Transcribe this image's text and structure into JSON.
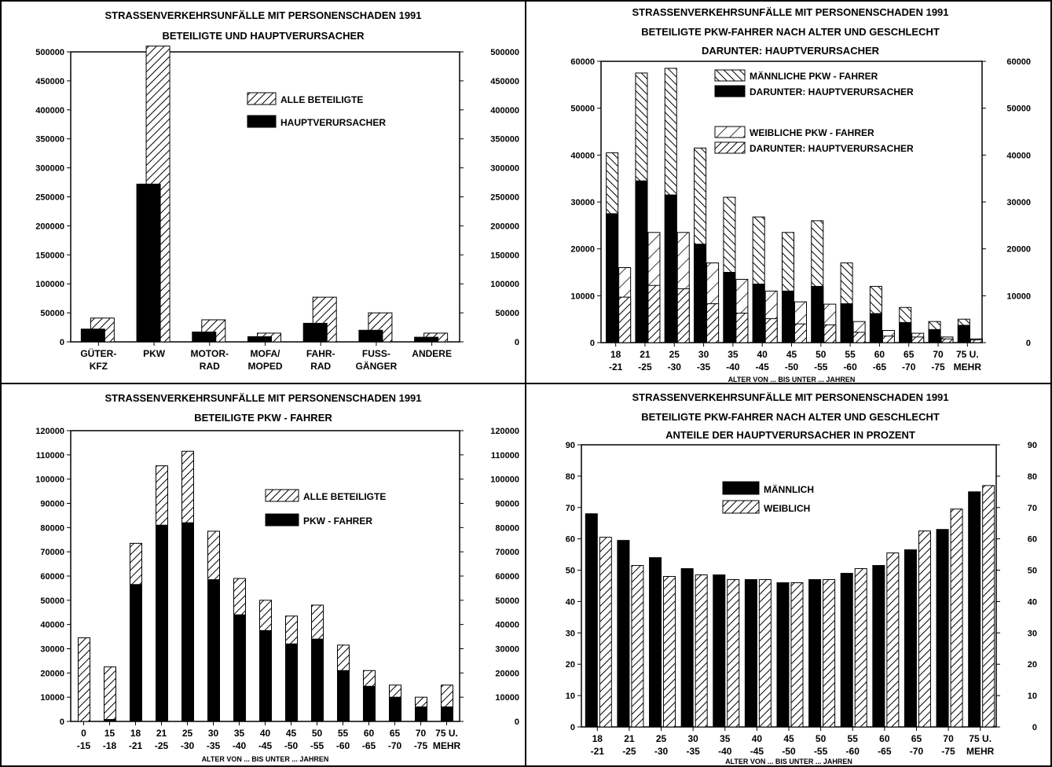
{
  "chart_data": [
    {
      "type": "bar",
      "title_lines": [
        "STRASSENVERKEHRSUNFÄLLE MIT PERSONENSCHADEN 1991",
        "BETEILIGTE UND HAUPTVERURSACHER"
      ],
      "categories": [
        [
          "GÜTER-",
          "KFZ"
        ],
        [
          "PKW",
          ""
        ],
        [
          "MOTOR-",
          "RAD"
        ],
        [
          "MOFA/",
          "MOPED"
        ],
        [
          "FAHR-",
          "RAD"
        ],
        [
          "FUSS-",
          "GÄNGER"
        ],
        [
          "ANDERE",
          ""
        ]
      ],
      "series": [
        {
          "name": "HAUPTVERURSACHER",
          "pattern": "solid",
          "values": [
            22000,
            272000,
            17000,
            9000,
            32000,
            20000,
            8000
          ]
        },
        {
          "name": "ALLE BETEILIGTE",
          "pattern": "hatch",
          "values": [
            41000,
            510000,
            38000,
            15000,
            77000,
            50000,
            15000
          ]
        }
      ],
      "ylim": [
        0,
        500000
      ],
      "yticks": [
        "0",
        "50000",
        "100000",
        "150000",
        "200000",
        "250000",
        "300000",
        "350000",
        "400000",
        "450000",
        "500000"
      ],
      "xlabel": "",
      "legend_position": "top-right"
    },
    {
      "type": "bar",
      "title_lines": [
        "STRASSENVERKEHRSUNFÄLLE MIT PERSONENSCHADEN 1991",
        "BETEILIGTE PKW-FAHRER NACH ALTER UND GESCHLECHT",
        "DARUNTER: HAUPTVERURSACHER"
      ],
      "categories": [
        [
          "18",
          "-21"
        ],
        [
          "21",
          "-25"
        ],
        [
          "25",
          "-30"
        ],
        [
          "30",
          "-35"
        ],
        [
          "35",
          "-40"
        ],
        [
          "40",
          "-45"
        ],
        [
          "45",
          "-50"
        ],
        [
          "50",
          "-55"
        ],
        [
          "55",
          "-60"
        ],
        [
          "60",
          "-65"
        ],
        [
          "65",
          "-70"
        ],
        [
          "70",
          "-75"
        ],
        [
          "75 U.",
          "MEHR"
        ]
      ],
      "series": [
        {
          "name": "MÄNNLICHE PKW - FAHRER",
          "pattern": "hatch-back",
          "values": [
            40500,
            57500,
            58500,
            41500,
            31000,
            26800,
            23500,
            26000,
            17000,
            12000,
            7500,
            4500,
            5000
          ]
        },
        {
          "name": "DARUNTER: HAUPTVERURSACHER",
          "pattern": "solid",
          "values": [
            27500,
            34500,
            31500,
            21000,
            15000,
            12500,
            11000,
            12000,
            8300,
            6200,
            4300,
            2800,
            3700
          ]
        },
        {
          "name": "WEIBLICHE PKW - FAHRER",
          "pattern": "hatch-wide",
          "values": [
            16000,
            23500,
            23500,
            17000,
            13500,
            11000,
            8700,
            8200,
            4500,
            2600,
            2000,
            1200,
            800
          ]
        },
        {
          "name": "DARUNTER: HAUPTVERURSACHER",
          "pattern": "hatch",
          "values": [
            9700,
            12200,
            11500,
            8300,
            6300,
            5100,
            4000,
            3800,
            2200,
            1400,
            1200,
            800,
            600
          ]
        }
      ],
      "ylim": [
        0,
        60000
      ],
      "yticks": [
        "0",
        "10000",
        "20000",
        "30000",
        "40000",
        "50000",
        "60000"
      ],
      "xlabel": "ALTER VON ... BIS UNTER ... JAHREN",
      "legend_position": "top-right"
    },
    {
      "type": "bar",
      "title_lines": [
        "STRASSENVERKEHRSUNFÄLLE MIT PERSONENSCHADEN 1991",
        "BETEILIGTE PKW - FAHRER"
      ],
      "categories": [
        [
          "0",
          "-15"
        ],
        [
          "15",
          "-18"
        ],
        [
          "18",
          "-21"
        ],
        [
          "21",
          "-25"
        ],
        [
          "25",
          "-30"
        ],
        [
          "30",
          "-35"
        ],
        [
          "35",
          "-40"
        ],
        [
          "40",
          "-45"
        ],
        [
          "45",
          "-50"
        ],
        [
          "50",
          "-55"
        ],
        [
          "55",
          "-60"
        ],
        [
          "60",
          "-65"
        ],
        [
          "65",
          "-70"
        ],
        [
          "70",
          "-75"
        ],
        [
          "75 U.",
          "MEHR"
        ]
      ],
      "series": [
        {
          "name": "ALLE BETEILIGTE",
          "pattern": "hatch",
          "values": [
            34500,
            22500,
            73500,
            105500,
            111500,
            78500,
            59000,
            50000,
            43500,
            48000,
            31500,
            21000,
            15000,
            10000,
            15000
          ]
        },
        {
          "name": "PKW - FAHRER",
          "pattern": "solid",
          "values": [
            0,
            800,
            56500,
            81000,
            82000,
            58500,
            44000,
            37500,
            32000,
            34000,
            21000,
            14500,
            10000,
            6000,
            6000
          ]
        }
      ],
      "ylim": [
        0,
        120000
      ],
      "yticks": [
        "0",
        "10000",
        "20000",
        "30000",
        "40000",
        "50000",
        "60000",
        "70000",
        "80000",
        "90000",
        "100000",
        "110000",
        "120000"
      ],
      "xlabel": "ALTER VON ... BIS UNTER ... JAHREN",
      "legend_position": "top-right"
    },
    {
      "type": "bar",
      "title_lines": [
        "STRASSENVERKEHRSUNFÄLLE MIT PERSONENSCHADEN 1991",
        "BETEILIGTE PKW-FAHRER NACH ALTER UND GESCHLECHT",
        "ANTEILE DER HAUPTVERURSACHER IN PROZENT"
      ],
      "categories": [
        [
          "18",
          "-21"
        ],
        [
          "21",
          "-25"
        ],
        [
          "25",
          "-30"
        ],
        [
          "30",
          "-35"
        ],
        [
          "35",
          "-40"
        ],
        [
          "40",
          "-45"
        ],
        [
          "45",
          "-50"
        ],
        [
          "50",
          "-55"
        ],
        [
          "55",
          "-60"
        ],
        [
          "60",
          "-65"
        ],
        [
          "65",
          "-70"
        ],
        [
          "70",
          "-75"
        ],
        [
          "75 U.",
          "MEHR"
        ]
      ],
      "series": [
        {
          "name": "MÄNNLICH",
          "pattern": "solid",
          "values": [
            68,
            59.5,
            54,
            50.5,
            48.5,
            47,
            46,
            47,
            49,
            51.5,
            56.5,
            63,
            75
          ]
        },
        {
          "name": "WEIBLICH",
          "pattern": "hatch",
          "values": [
            60.5,
            51.5,
            48,
            48.5,
            47,
            47,
            46,
            47,
            50.5,
            55.5,
            62.5,
            69.5,
            77
          ]
        }
      ],
      "ylim": [
        0,
        90
      ],
      "yticks": [
        "0",
        "10",
        "20",
        "30",
        "40",
        "50",
        "60",
        "70",
        "80",
        "90"
      ],
      "xlabel": "ALTER VON ... BIS UNTER ... JAHREN",
      "legend_position": "top-center"
    }
  ]
}
